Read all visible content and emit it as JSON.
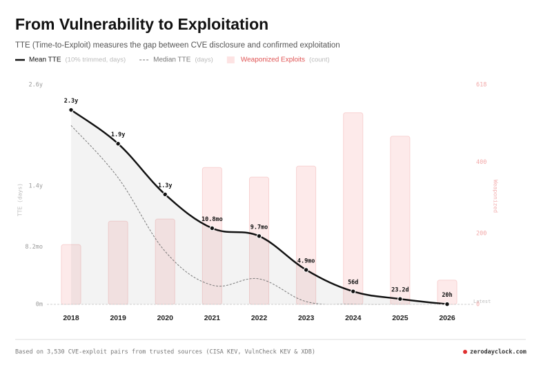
{
  "chart_data": {
    "type": "combo",
    "title": "From Vulnerability to Exploitation",
    "subtitle": "TTE (Time-to-Exploit) measures the gap between CVE disclosure and confirmed exploitation",
    "ylabel": "TTE (days)",
    "y2label": "Weaponized",
    "categories": [
      "2018",
      "2019",
      "2020",
      "2021",
      "2022",
      "2023",
      "2024",
      "2025",
      "2026"
    ],
    "series": [
      {
        "name": "Mean TTE",
        "note": "(10% trimmed, days)",
        "kind": "line",
        "color": "#111111",
        "values": [
          840,
          694,
          475,
          329,
          295,
          149,
          56,
          23.2,
          0.83
        ],
        "value_labels": [
          "2.3y",
          "1.9y",
          "1.3y",
          "10.8mo",
          "9.7mo",
          "4.9mo",
          "56d",
          "23.2d",
          "20h"
        ]
      },
      {
        "name": "Median TTE",
        "note": "(days)",
        "kind": "dashed",
        "color": "#777777",
        "values": [
          773,
          547,
          229,
          83,
          110,
          12,
          1,
          0,
          0
        ]
      },
      {
        "name": "Weaponized Exploits",
        "note": "(count)",
        "kind": "bar",
        "axis": "y2",
        "color": "#e05555",
        "values": [
          168,
          234,
          240,
          385,
          358,
          389,
          539,
          473,
          68
        ]
      }
    ],
    "ylim": [
      0,
      949
    ],
    "yticks": [
      {
        "value": 0,
        "label": "0m"
      },
      {
        "value": 249,
        "label": "8.2mo"
      },
      {
        "value": 511,
        "label": "1.4y"
      },
      {
        "value": 949,
        "label": "2.6y"
      }
    ],
    "y2lim": [
      0,
      618
    ],
    "y2ticks": [
      0,
      200,
      400,
      618
    ],
    "annotation": "Latest",
    "footer": "Based on 3,530 CVE-exploit pairs from trusted sources (CISA KEV, VulnCheck KEV & XDB)",
    "source": "zerodayclock.com"
  }
}
